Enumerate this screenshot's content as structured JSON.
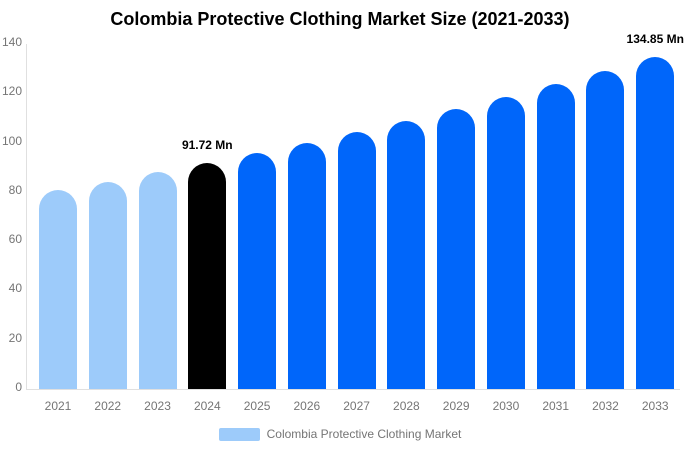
{
  "colors": {
    "background": "#FFFFFF",
    "axis_line": "#E0E0E0",
    "tick_text": "#757575",
    "title_text": "#000000",
    "value_label_text": "#000000",
    "legend_text": "#757575",
    "past_bar": "#9DCBFA",
    "highlight_bar": "#000000",
    "forecast_bar": "#0066FA"
  },
  "chart_data": {
    "type": "bar",
    "title": "Colombia Protective Clothing Market Size (2021-2033)",
    "xlabel": "",
    "ylabel": "",
    "unit": "Mn",
    "categories": [
      "2021",
      "2022",
      "2023",
      "2024",
      "2025",
      "2026",
      "2027",
      "2028",
      "2029",
      "2030",
      "2031",
      "2032",
      "2033"
    ],
    "series": [
      {
        "name": "Colombia Protective Clothing Market",
        "values": [
          80.7,
          84.2,
          87.9,
          91.72,
          95.7,
          99.9,
          104.3,
          108.9,
          113.6,
          118.6,
          123.8,
          129.2,
          134.85
        ]
      }
    ],
    "bar_colors": [
      "#9DCBFA",
      "#9DCBFA",
      "#9DCBFA",
      "#000000",
      "#0066FA",
      "#0066FA",
      "#0066FA",
      "#0066FA",
      "#0066FA",
      "#0066FA",
      "#0066FA",
      "#0066FA",
      "#0066FA"
    ],
    "value_labels": [
      {
        "category": "2024",
        "text": "91.72 Mn"
      },
      {
        "category": "2033",
        "text": "134.85 Mn"
      }
    ],
    "ylim": [
      0,
      140
    ],
    "yticks": [
      0,
      20,
      40,
      60,
      80,
      100,
      120,
      140
    ],
    "grid": false,
    "legend": {
      "position": "bottom",
      "items": [
        {
          "label": "Colombia Protective Clothing Market",
          "color": "#9DCBFA"
        }
      ]
    }
  }
}
